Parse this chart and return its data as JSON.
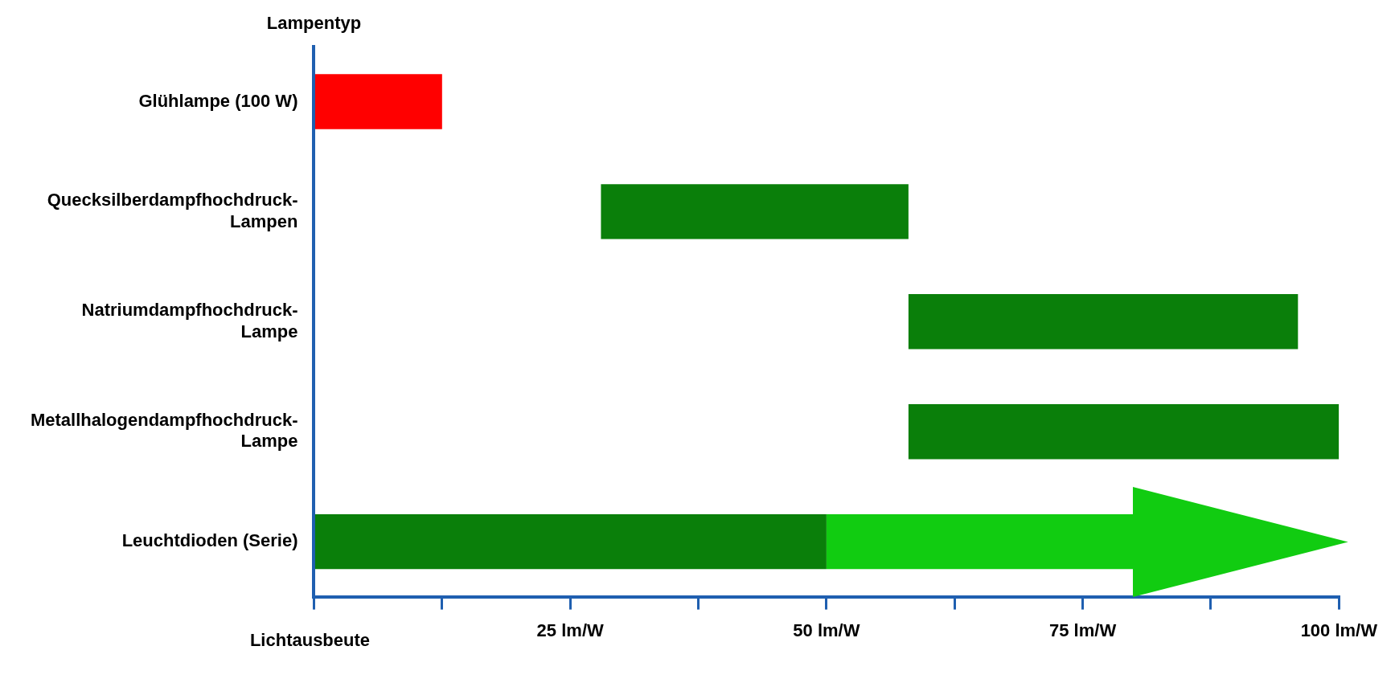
{
  "chart_data": {
    "type": "bar",
    "orientation": "horizontal",
    "xlabel": "Lichtausbeute",
    "ylabel": "Lampentyp",
    "categories": [
      "Glühlampe (100 W)",
      "Quecksilberdampfhochdruck-Lampen",
      "Natriumdampfhochdruck-Lampe",
      "Metallhalogendampfhochdruck-Lampe",
      "Leuchtdioden (Serie)"
    ],
    "series": [
      {
        "colors": [
          "#ff0000",
          "#0a7f0a",
          "#0a7f0a",
          "#0a7f0a",
          "#0a7f0a"
        ],
        "base": [
          0,
          28,
          58,
          58,
          0
        ],
        "values": [
          12.5,
          30,
          38,
          42,
          50
        ]
      },
      {
        "color": "#11cc11",
        "base": [
          null,
          null,
          null,
          null,
          50
        ],
        "values": [
          null,
          null,
          null,
          null,
          30
        ]
      }
    ],
    "xlim": [
      0,
      100
    ],
    "xticks": [
      {
        "value": 0,
        "label": null
      },
      {
        "value": 12.5,
        "label": null
      },
      {
        "value": 25,
        "label": "25 lm/W"
      },
      {
        "value": 37.5,
        "label": null
      },
      {
        "value": 50,
        "label": "50 lm/W"
      },
      {
        "value": 62.5,
        "label": null
      },
      {
        "value": 75,
        "label": "75 lm/W"
      },
      {
        "value": 87.5,
        "label": null
      },
      {
        "value": 100,
        "label": "100 lm/W"
      }
    ],
    "grid": false,
    "legend": false
  }
}
